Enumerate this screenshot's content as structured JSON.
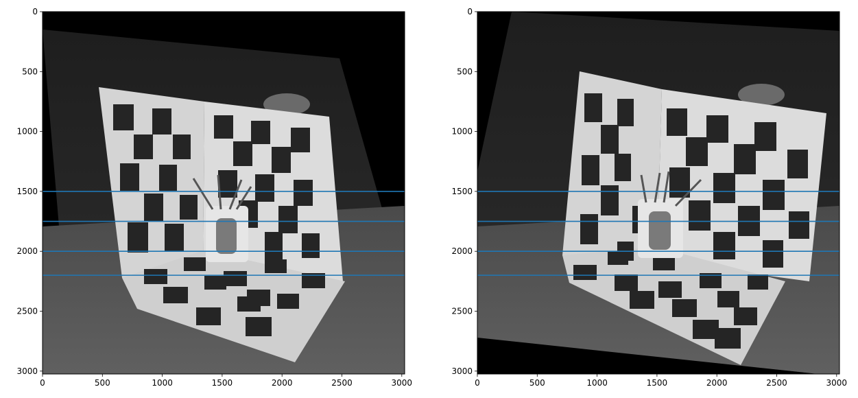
{
  "chart_data": [
    {
      "type": "image",
      "title": "",
      "xlabel": "",
      "ylabel": "",
      "xlim": [
        0,
        3024
      ],
      "ylim": [
        3024,
        0
      ],
      "xticks": [
        0,
        500,
        1000,
        1500,
        2000,
        2500,
        3000
      ],
      "yticks": [
        0,
        500,
        1000,
        1500,
        2000,
        2500,
        3000
      ],
      "image_content": "rectified grayscale photo of checkerboard calibration target with mug of pens",
      "hlines": [
        1500,
        1750,
        2000,
        2200
      ],
      "line_color": "#1f77b4"
    },
    {
      "type": "image",
      "title": "",
      "xlabel": "",
      "ylabel": "",
      "xlim": [
        0,
        3024
      ],
      "ylim": [
        3024,
        0
      ],
      "xticks": [
        0,
        500,
        1000,
        1500,
        2000,
        2500,
        3000
      ],
      "yticks": [
        0,
        500,
        1000,
        1500,
        2000,
        2500,
        3000
      ],
      "image_content": "rectified grayscale photo of checkerboard calibration target with mug of pens",
      "hlines": [
        1500,
        1750,
        2000,
        2200
      ],
      "line_color": "#1f77b4"
    }
  ]
}
